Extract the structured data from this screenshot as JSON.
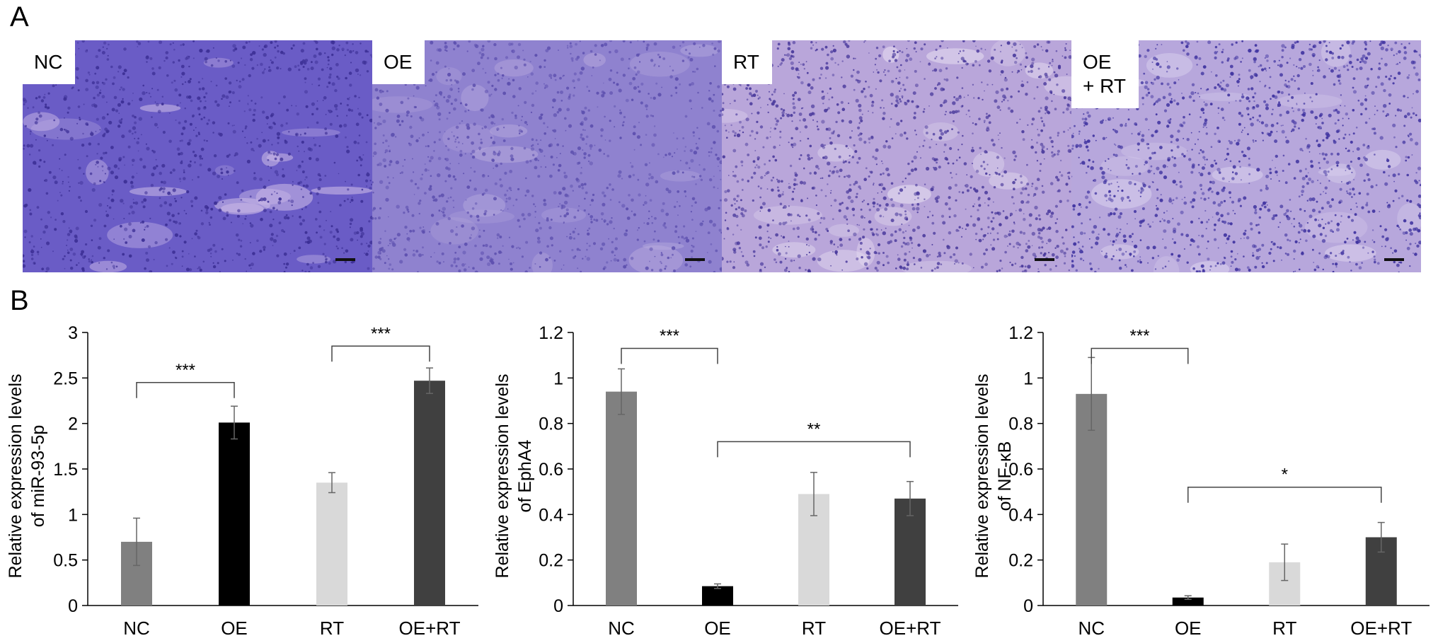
{
  "panels": {
    "a_label": "A",
    "b_label": "B"
  },
  "histology": [
    {
      "label_lines": [
        "NC"
      ],
      "base": "#6a5cc6",
      "dot": "#3c2f95",
      "light": "#c9b8e6"
    },
    {
      "label_lines": [
        "OE"
      ],
      "base": "#8f82cf",
      "dot": "#5c4fae",
      "light": "#b9acde"
    },
    {
      "label_lines": [
        "RT"
      ],
      "base": "#b9a6da",
      "dot": "#4a3a9c",
      "light": "#e8e0f2"
    },
    {
      "label_lines": [
        "OE",
        "+ RT"
      ],
      "base": "#b7a7dc",
      "dot": "#3f33a0",
      "light": "#ddd5ef"
    }
  ],
  "chart_data": [
    {
      "type": "bar",
      "categories": [
        "NC",
        "OE",
        "RT",
        "OE+RT"
      ],
      "values": [
        0.7,
        2.01,
        1.35,
        2.47
      ],
      "errors": [
        0.26,
        0.18,
        0.11,
        0.14
      ],
      "colors": [
        "#808080",
        "#000000",
        "#d9d9d9",
        "#404040"
      ],
      "ylabel_lines": [
        "Relative expression levels",
        "of miR-93-5p"
      ],
      "ylim": [
        0,
        3
      ],
      "yticks": [
        0,
        0.5,
        1,
        1.5,
        2,
        2.5,
        3
      ],
      "ytick_labels": [
        "0",
        "0.5",
        "1",
        "1.5",
        "2",
        "2.5",
        "3"
      ],
      "significance": [
        {
          "from": 0,
          "to": 1,
          "y": 2.45,
          "label": "***"
        },
        {
          "from": 2,
          "to": 3,
          "y": 2.85,
          "label": "***"
        }
      ]
    },
    {
      "type": "bar",
      "categories": [
        "NC",
        "OE",
        "RT",
        "OE+RT"
      ],
      "values": [
        0.94,
        0.085,
        0.49,
        0.47
      ],
      "errors": [
        0.1,
        0.01,
        0.095,
        0.075
      ],
      "colors": [
        "#808080",
        "#000000",
        "#d9d9d9",
        "#404040"
      ],
      "ylabel_lines": [
        "Relative expression levels",
        "of EphA4"
      ],
      "ylim": [
        0,
        1.2
      ],
      "yticks": [
        0,
        0.2,
        0.4,
        0.6,
        0.8,
        1,
        1.2
      ],
      "ytick_labels": [
        "0",
        "0.2",
        "0.4",
        "0.6",
        "0.8",
        "1",
        "1.2"
      ],
      "significance": [
        {
          "from": 0,
          "to": 1,
          "y": 1.13,
          "label": "***"
        },
        {
          "from": 1,
          "to": 3,
          "y": 0.72,
          "label": "**"
        }
      ]
    },
    {
      "type": "bar",
      "categories": [
        "NC",
        "OE",
        "RT",
        "OE+RT"
      ],
      "values": [
        0.93,
        0.035,
        0.19,
        0.3
      ],
      "errors": [
        0.16,
        0.008,
        0.08,
        0.065
      ],
      "colors": [
        "#808080",
        "#000000",
        "#d9d9d9",
        "#404040"
      ],
      "ylabel_lines": [
        "Relative expression levels",
        "of NF-κB"
      ],
      "ylim": [
        0,
        1.2
      ],
      "yticks": [
        0,
        0.2,
        0.4,
        0.6,
        0.8,
        1,
        1.2
      ],
      "ytick_labels": [
        "0",
        "0.2",
        "0.4",
        "0.6",
        "0.8",
        "1",
        "1.2"
      ],
      "significance": [
        {
          "from": 0,
          "to": 1,
          "y": 1.13,
          "label": "***"
        },
        {
          "from": 1,
          "to": 3,
          "y": 0.52,
          "label": "*"
        }
      ]
    }
  ]
}
